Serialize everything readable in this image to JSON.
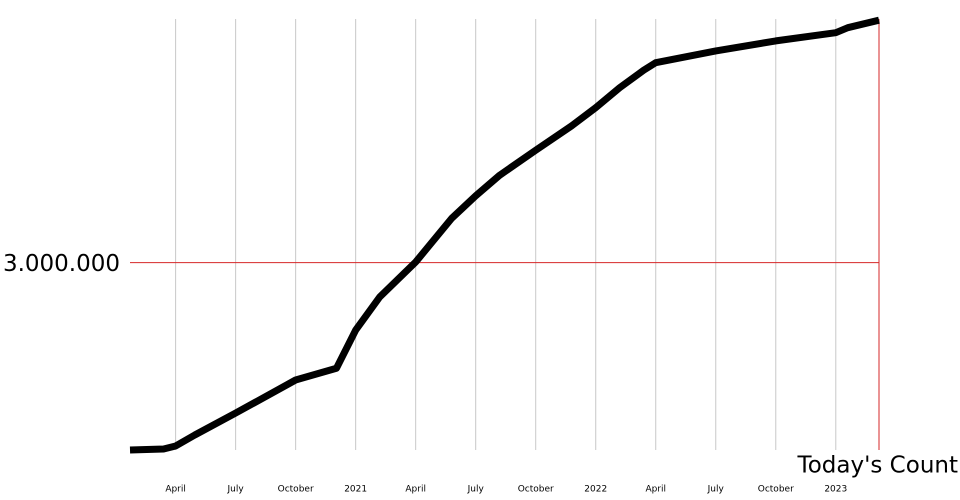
{
  "chart_data": {
    "type": "line",
    "annotation": "Today's Count",
    "x": [
      2020.06,
      2020.2,
      2020.25,
      2020.33,
      2020.5,
      2020.75,
      2020.92,
      2021.0,
      2021.1,
      2021.25,
      2021.4,
      2021.5,
      2021.6,
      2021.75,
      2021.9,
      2022.0,
      2022.1,
      2022.2,
      2022.25,
      2022.5,
      2022.75,
      2023.0,
      2023.05,
      2023.18
    ],
    "values": [
      0,
      16000,
      64000,
      240000,
      590000,
      1120000,
      1310000,
      1920000,
      2450000,
      3010000,
      3710000,
      4070000,
      4400000,
      4800000,
      5190000,
      5480000,
      5800000,
      6080000,
      6200000,
      6390000,
      6550000,
      6680000,
      6760000,
      6880000
    ],
    "color": "#000000",
    "reference_color": "#d62728",
    "xlim": [
      2020.06,
      2023.18
    ],
    "xticks": [
      {
        "value": 2020.25,
        "label": "April"
      },
      {
        "value": 2020.5,
        "label": "July"
      },
      {
        "value": 2020.75,
        "label": "October"
      },
      2021,
      {
        "value": 2021.25,
        "label": "April"
      },
      {
        "value": 2021.5,
        "label": "July"
      },
      {
        "value": 2021.75,
        "label": "October"
      },
      2022,
      {
        "value": 2022.25,
        "label": "April"
      },
      {
        "value": 2022.5,
        "label": "July"
      },
      {
        "value": 2022.75,
        "label": "October"
      },
      2023
    ],
    "ylim": [
      0,
      6900000
    ],
    "yticks": [
      {
        "value": 3000000,
        "label": "3.000.000"
      }
    ],
    "grid": true
  }
}
